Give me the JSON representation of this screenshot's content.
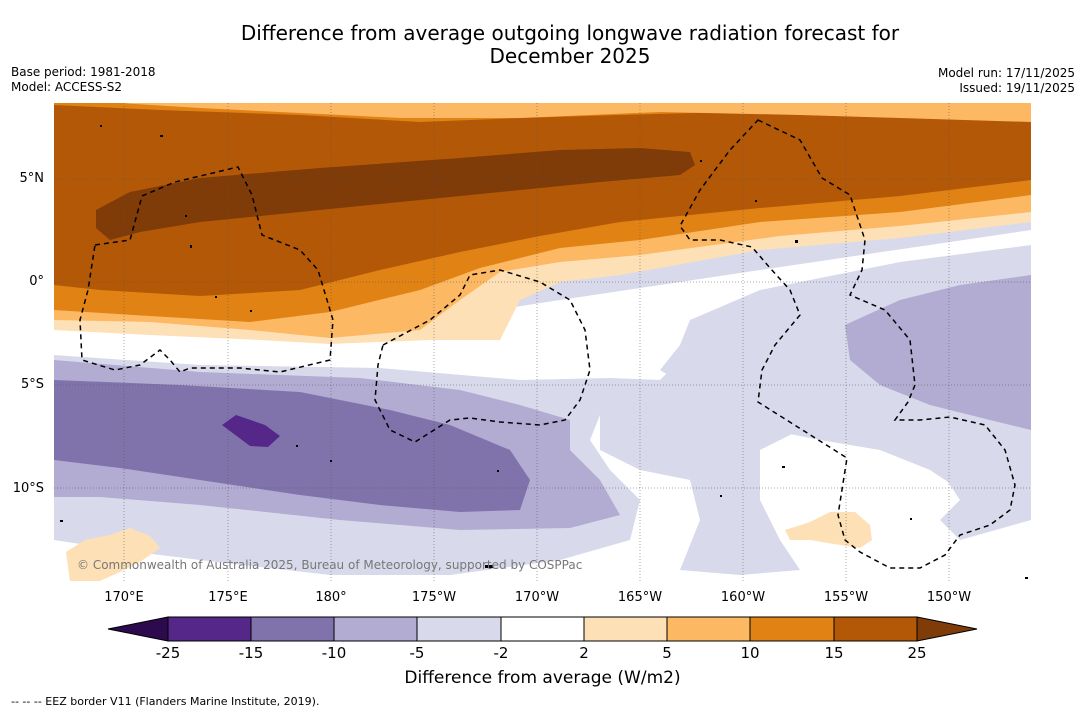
{
  "header": {
    "title_line1": "Difference from average outgoing longwave radiation forecast for",
    "title_line2": "December 2025",
    "base_period": "Base period: 1981-2018",
    "model": "Model: ACCESS-S2",
    "model_run": "Model run: 17/11/2025",
    "issued": "Issued: 19/11/2025"
  },
  "map": {
    "lat_labels": [
      "5°N",
      "0°",
      "5°S",
      "10°S"
    ],
    "lon_labels": [
      "170°E",
      "175°E",
      "180°",
      "175°W",
      "170°W",
      "165°W",
      "160°W",
      "155°W",
      "150°W"
    ],
    "copyright": "© Commonwealth of Australia 2025, Bureau of Meteorology, supported by COSPPac"
  },
  "colorbar": {
    "ticks": [
      "-25",
      "-15",
      "-10",
      "-5",
      "-2",
      "2",
      "5",
      "10",
      "15",
      "25"
    ],
    "label": "Difference from average (W/m2)",
    "colors": [
      "#2d0a4e",
      "#542788",
      "#8073ac",
      "#b2abd2",
      "#d8daeb",
      "#ffffff",
      "#fee0b6",
      "#fdb863",
      "#e08214",
      "#b35806",
      "#7f3b08"
    ]
  },
  "legend": {
    "eez_text": "-- -- -- EEZ border V11 (Flanders Marine Institute, 2019)."
  }
}
